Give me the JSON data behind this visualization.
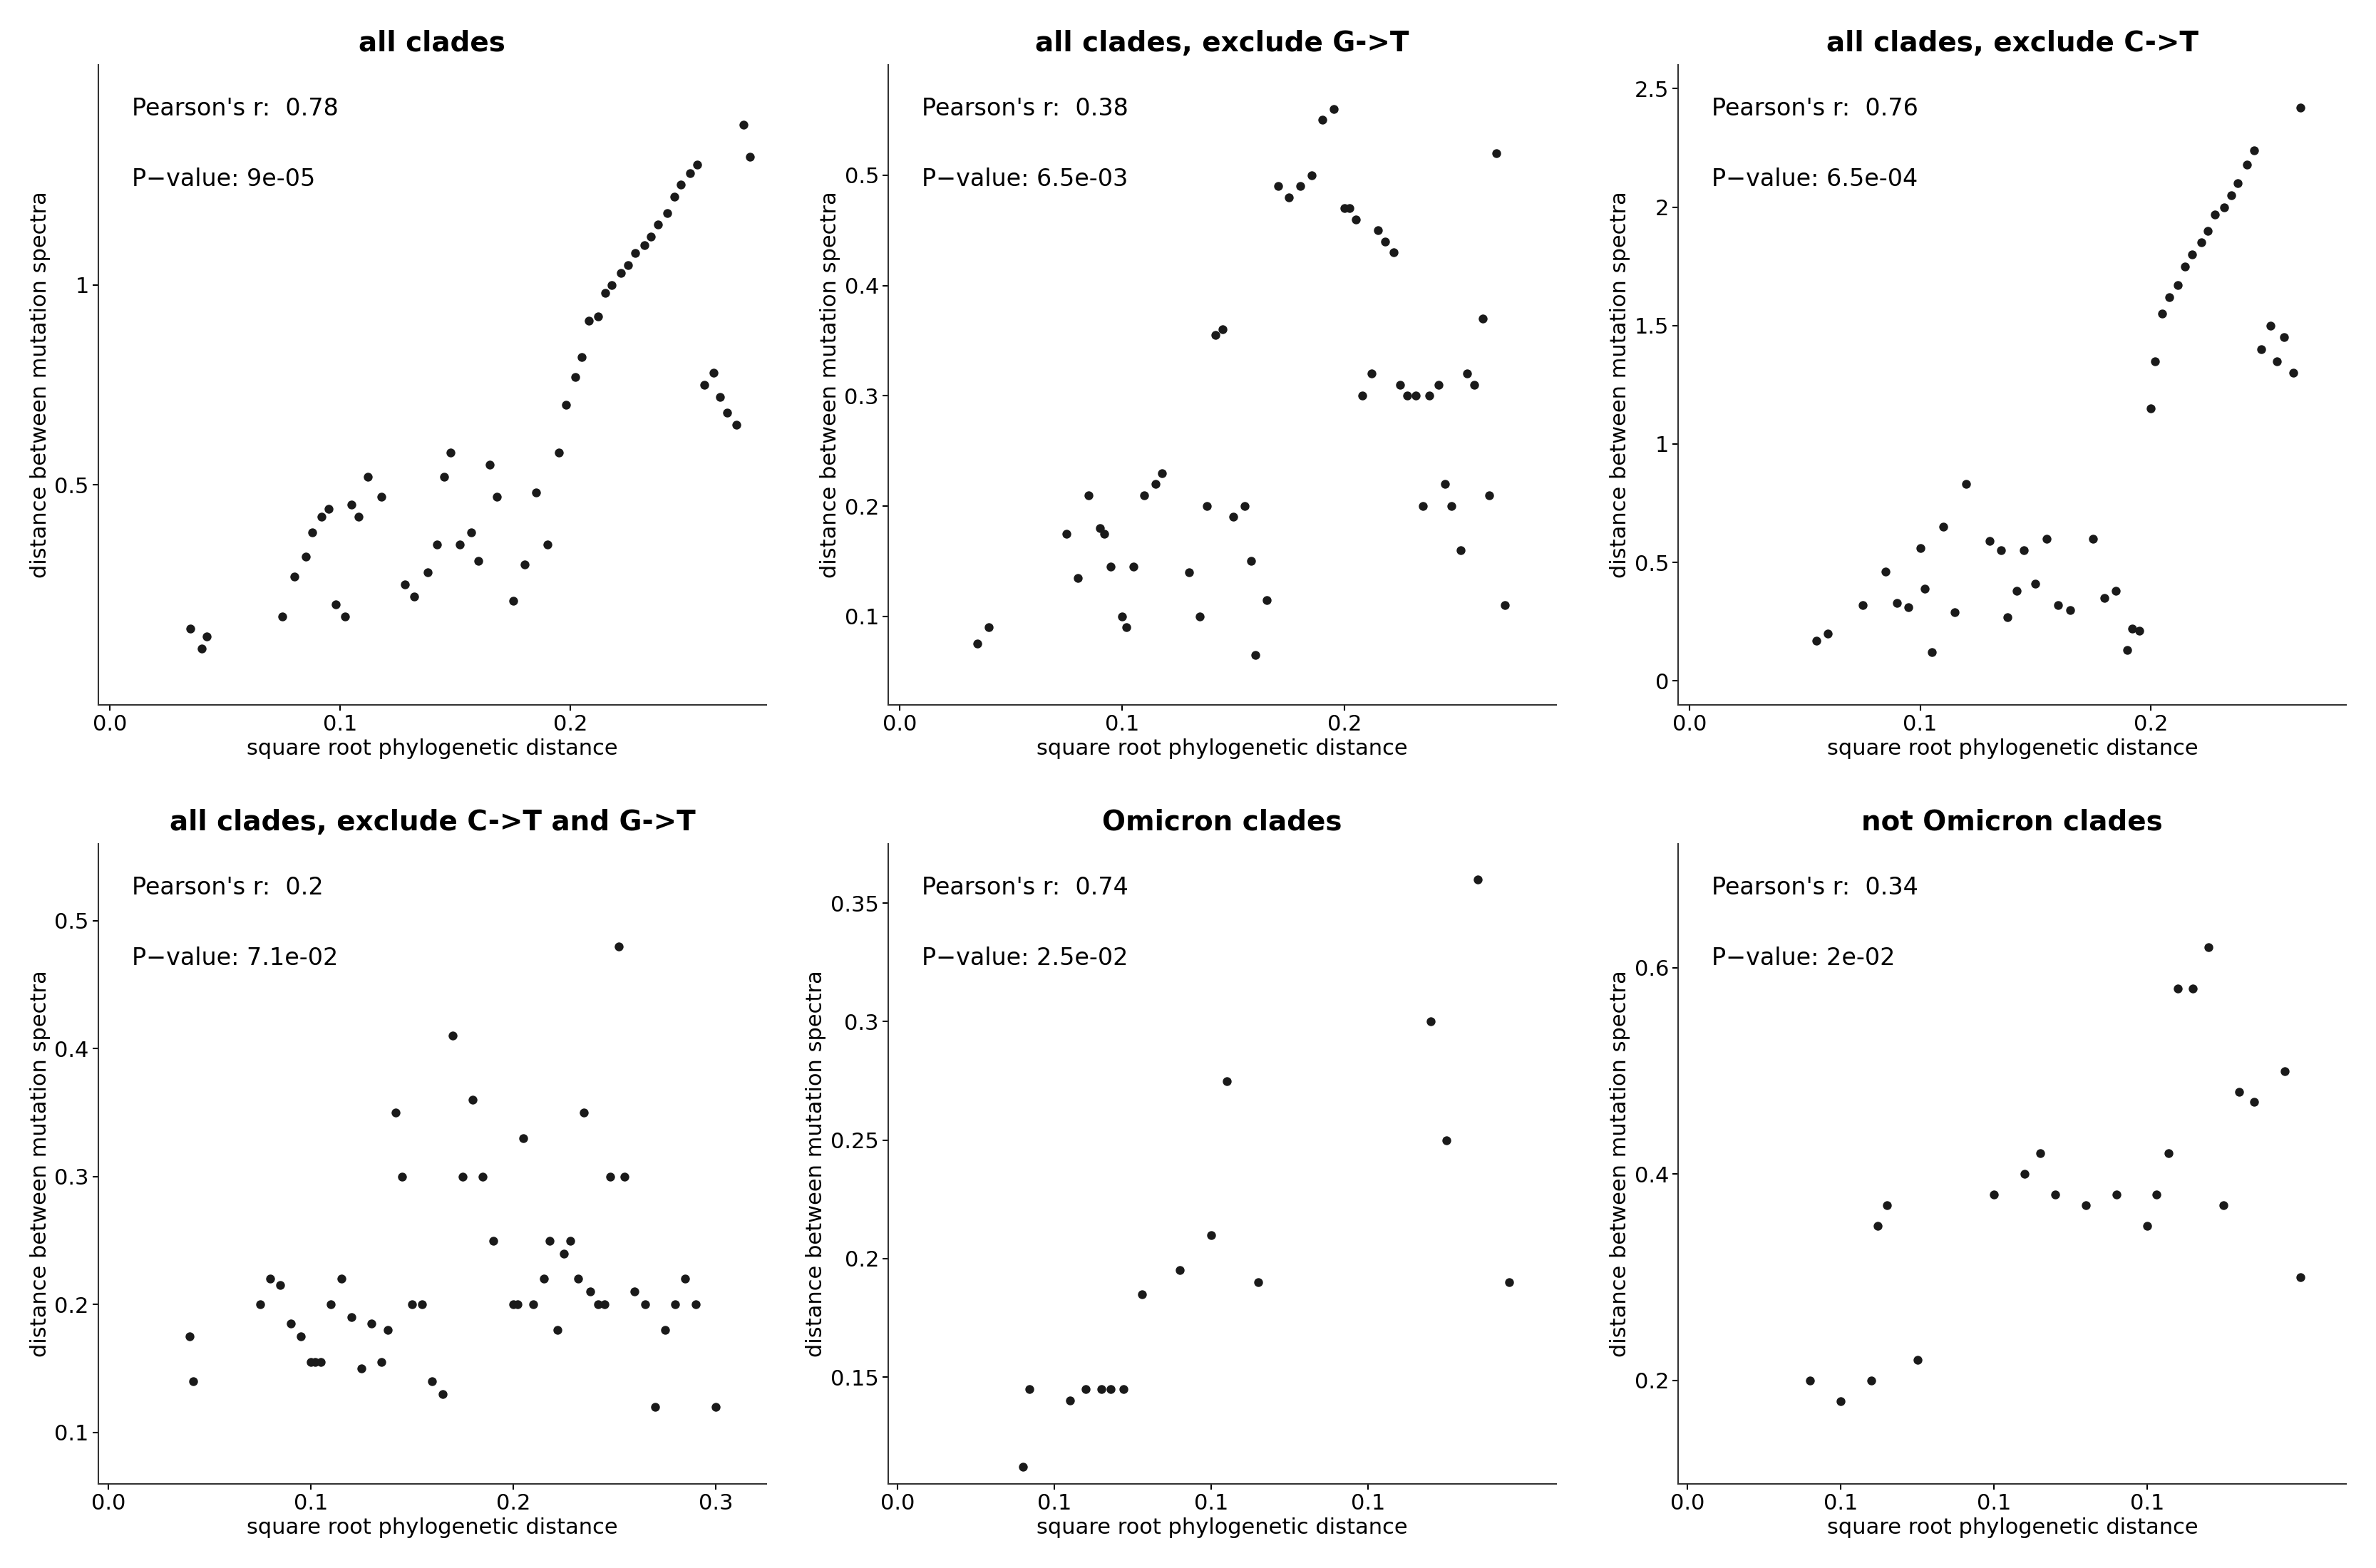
{
  "panels": [
    {
      "title": "all clades",
      "pearson_r": "0.78",
      "p_value": "9e-05",
      "xlim": [
        -0.005,
        0.285
      ],
      "ylim": [
        -0.05,
        1.55
      ],
      "xticks": [
        0.0,
        0.1,
        0.2
      ],
      "yticks": [
        0.5,
        1.0
      ],
      "x": [
        0.035,
        0.04,
        0.042,
        0.075,
        0.08,
        0.085,
        0.088,
        0.092,
        0.095,
        0.098,
        0.102,
        0.105,
        0.108,
        0.112,
        0.118,
        0.128,
        0.132,
        0.138,
        0.142,
        0.145,
        0.148,
        0.152,
        0.157,
        0.16,
        0.165,
        0.168,
        0.175,
        0.18,
        0.185,
        0.19,
        0.195,
        0.198,
        0.202,
        0.205,
        0.208,
        0.212,
        0.215,
        0.218,
        0.222,
        0.225,
        0.228,
        0.232,
        0.235,
        0.238,
        0.242,
        0.245,
        0.248,
        0.252,
        0.255,
        0.258,
        0.262,
        0.265,
        0.268,
        0.272,
        0.275,
        0.278
      ],
      "y": [
        0.14,
        0.09,
        0.12,
        0.17,
        0.27,
        0.32,
        0.38,
        0.42,
        0.44,
        0.2,
        0.17,
        0.45,
        0.42,
        0.52,
        0.47,
        0.25,
        0.22,
        0.28,
        0.35,
        0.52,
        0.58,
        0.35,
        0.38,
        0.31,
        0.55,
        0.47,
        0.21,
        0.3,
        0.48,
        0.35,
        0.58,
        0.7,
        0.77,
        0.82,
        0.91,
        0.92,
        0.98,
        1.0,
        1.03,
        1.05,
        1.08,
        1.1,
        1.12,
        1.15,
        1.18,
        1.22,
        1.25,
        1.28,
        1.3,
        0.75,
        0.78,
        0.72,
        0.68,
        0.65,
        1.4,
        1.32
      ]
    },
    {
      "title": "all clades, exclude G->T",
      "pearson_r": "0.38",
      "p_value": "6.5e-03",
      "xlim": [
        -0.005,
        0.295
      ],
      "ylim": [
        0.02,
        0.6
      ],
      "xticks": [
        0.0,
        0.1,
        0.2
      ],
      "yticks": [
        0.1,
        0.2,
        0.3,
        0.4,
        0.5
      ],
      "x": [
        0.035,
        0.04,
        0.075,
        0.08,
        0.085,
        0.09,
        0.092,
        0.095,
        0.1,
        0.102,
        0.105,
        0.11,
        0.115,
        0.118,
        0.13,
        0.135,
        0.138,
        0.142,
        0.145,
        0.15,
        0.155,
        0.158,
        0.16,
        0.165,
        0.17,
        0.175,
        0.18,
        0.185,
        0.19,
        0.195,
        0.2,
        0.202,
        0.205,
        0.208,
        0.212,
        0.215,
        0.218,
        0.222,
        0.225,
        0.228,
        0.232,
        0.235,
        0.238,
        0.242,
        0.245,
        0.248,
        0.252,
        0.255,
        0.258,
        0.262,
        0.265,
        0.268,
        0.272
      ],
      "y": [
        0.075,
        0.09,
        0.175,
        0.135,
        0.21,
        0.18,
        0.175,
        0.145,
        0.1,
        0.09,
        0.145,
        0.21,
        0.22,
        0.23,
        0.14,
        0.1,
        0.2,
        0.355,
        0.36,
        0.19,
        0.2,
        0.15,
        0.065,
        0.115,
        0.49,
        0.48,
        0.49,
        0.5,
        0.55,
        0.56,
        0.47,
        0.47,
        0.46,
        0.3,
        0.32,
        0.45,
        0.44,
        0.43,
        0.31,
        0.3,
        0.3,
        0.2,
        0.3,
        0.31,
        0.22,
        0.2,
        0.16,
        0.32,
        0.31,
        0.37,
        0.21,
        0.52,
        0.11
      ]
    },
    {
      "title": "all clades, exclude C->T",
      "pearson_r": "0.76",
      "p_value": "6.5e-04",
      "xlim": [
        -0.005,
        0.285
      ],
      "ylim": [
        -0.1,
        2.6
      ],
      "xticks": [
        0.0,
        0.1,
        0.2
      ],
      "yticks": [
        0.0,
        0.5,
        1.0,
        1.5,
        2.0,
        2.5
      ],
      "x": [
        0.055,
        0.06,
        0.075,
        0.085,
        0.09,
        0.095,
        0.1,
        0.102,
        0.105,
        0.11,
        0.115,
        0.12,
        0.13,
        0.135,
        0.138,
        0.142,
        0.145,
        0.15,
        0.155,
        0.16,
        0.165,
        0.175,
        0.18,
        0.185,
        0.19,
        0.192,
        0.195,
        0.2,
        0.202,
        0.205,
        0.208,
        0.212,
        0.215,
        0.218,
        0.222,
        0.225,
        0.228,
        0.232,
        0.235,
        0.238,
        0.242,
        0.245,
        0.248,
        0.252,
        0.255,
        0.258,
        0.262,
        0.265
      ],
      "y": [
        0.17,
        0.2,
        0.32,
        0.46,
        0.33,
        0.31,
        0.56,
        0.39,
        0.12,
        0.65,
        0.29,
        0.83,
        0.59,
        0.55,
        0.27,
        0.38,
        0.55,
        0.41,
        0.6,
        0.32,
        0.3,
        0.6,
        0.35,
        0.38,
        0.13,
        0.22,
        0.21,
        1.15,
        1.35,
        1.55,
        1.62,
        1.67,
        1.75,
        1.8,
        1.85,
        1.9,
        1.97,
        2.0,
        2.05,
        2.1,
        2.18,
        2.24,
        1.4,
        1.5,
        1.35,
        1.45,
        1.3,
        2.42
      ]
    },
    {
      "title": "all clades, exclude C->T and G->T",
      "pearson_r": "0.2",
      "p_value": "7.1e-02",
      "xlim": [
        -0.005,
        0.325
      ],
      "ylim": [
        0.06,
        0.56
      ],
      "xticks": [
        0.0,
        0.1,
        0.2,
        0.3
      ],
      "yticks": [
        0.1,
        0.2,
        0.3,
        0.4,
        0.5
      ],
      "x": [
        0.04,
        0.042,
        0.075,
        0.08,
        0.085,
        0.09,
        0.095,
        0.1,
        0.102,
        0.105,
        0.11,
        0.115,
        0.12,
        0.125,
        0.13,
        0.135,
        0.138,
        0.142,
        0.145,
        0.15,
        0.155,
        0.16,
        0.165,
        0.17,
        0.175,
        0.18,
        0.185,
        0.19,
        0.2,
        0.202,
        0.205,
        0.21,
        0.215,
        0.218,
        0.222,
        0.225,
        0.228,
        0.232,
        0.235,
        0.238,
        0.242,
        0.245,
        0.248,
        0.252,
        0.255,
        0.26,
        0.265,
        0.27,
        0.275,
        0.28,
        0.285,
        0.29,
        0.3
      ],
      "y": [
        0.175,
        0.14,
        0.2,
        0.22,
        0.215,
        0.185,
        0.175,
        0.155,
        0.155,
        0.155,
        0.2,
        0.22,
        0.19,
        0.15,
        0.185,
        0.155,
        0.18,
        0.35,
        0.3,
        0.2,
        0.2,
        0.14,
        0.13,
        0.41,
        0.3,
        0.36,
        0.3,
        0.25,
        0.2,
        0.2,
        0.33,
        0.2,
        0.22,
        0.25,
        0.18,
        0.24,
        0.25,
        0.22,
        0.35,
        0.21,
        0.2,
        0.2,
        0.3,
        0.48,
        0.3,
        0.21,
        0.2,
        0.12,
        0.18,
        0.2,
        0.22,
        0.2,
        0.12
      ]
    },
    {
      "title": "Omicron clades",
      "pearson_r": "0.74",
      "p_value": "2.5e-02",
      "xlim": [
        -0.003,
        0.21
      ],
      "ylim": [
        0.105,
        0.375
      ],
      "xticks": [
        0.0,
        0.05,
        0.1,
        0.15
      ],
      "yticks": [
        0.15,
        0.2,
        0.25,
        0.3,
        0.35
      ],
      "x": [
        0.04,
        0.042,
        0.055,
        0.06,
        0.065,
        0.068,
        0.072,
        0.078,
        0.09,
        0.1,
        0.105,
        0.115,
        0.17,
        0.175,
        0.185,
        0.195
      ],
      "y": [
        0.112,
        0.145,
        0.14,
        0.145,
        0.145,
        0.145,
        0.145,
        0.185,
        0.195,
        0.21,
        0.275,
        0.19,
        0.3,
        0.25,
        0.36,
        0.19
      ]
    },
    {
      "title": "not Omicron clades",
      "pearson_r": "0.34",
      "p_value": "2e-02",
      "xlim": [
        -0.003,
        0.215
      ],
      "ylim": [
        0.1,
        0.72
      ],
      "xticks": [
        0.0,
        0.05,
        0.1,
        0.15
      ],
      "yticks": [
        0.2,
        0.4,
        0.6
      ],
      "x": [
        0.04,
        0.05,
        0.06,
        0.062,
        0.065,
        0.075,
        0.1,
        0.11,
        0.115,
        0.12,
        0.13,
        0.14,
        0.15,
        0.153,
        0.157,
        0.16,
        0.165,
        0.17,
        0.175,
        0.18,
        0.185,
        0.195,
        0.2
      ],
      "y": [
        0.2,
        0.18,
        0.2,
        0.35,
        0.37,
        0.22,
        0.38,
        0.4,
        0.42,
        0.38,
        0.37,
        0.38,
        0.35,
        0.38,
        0.42,
        0.58,
        0.58,
        0.62,
        0.37,
        0.48,
        0.47,
        0.5,
        0.3
      ]
    }
  ],
  "dot_color": "#1a1a1a",
  "dot_size": 80,
  "title_fontsize": 28,
  "label_fontsize": 22,
  "tick_fontsize": 22,
  "annot_fontsize": 24,
  "bg_color": "#ffffff",
  "spine_color": "#333333",
  "xlabel": "square root phylogenetic distance",
  "ylabel": "distance between mutation spectra"
}
